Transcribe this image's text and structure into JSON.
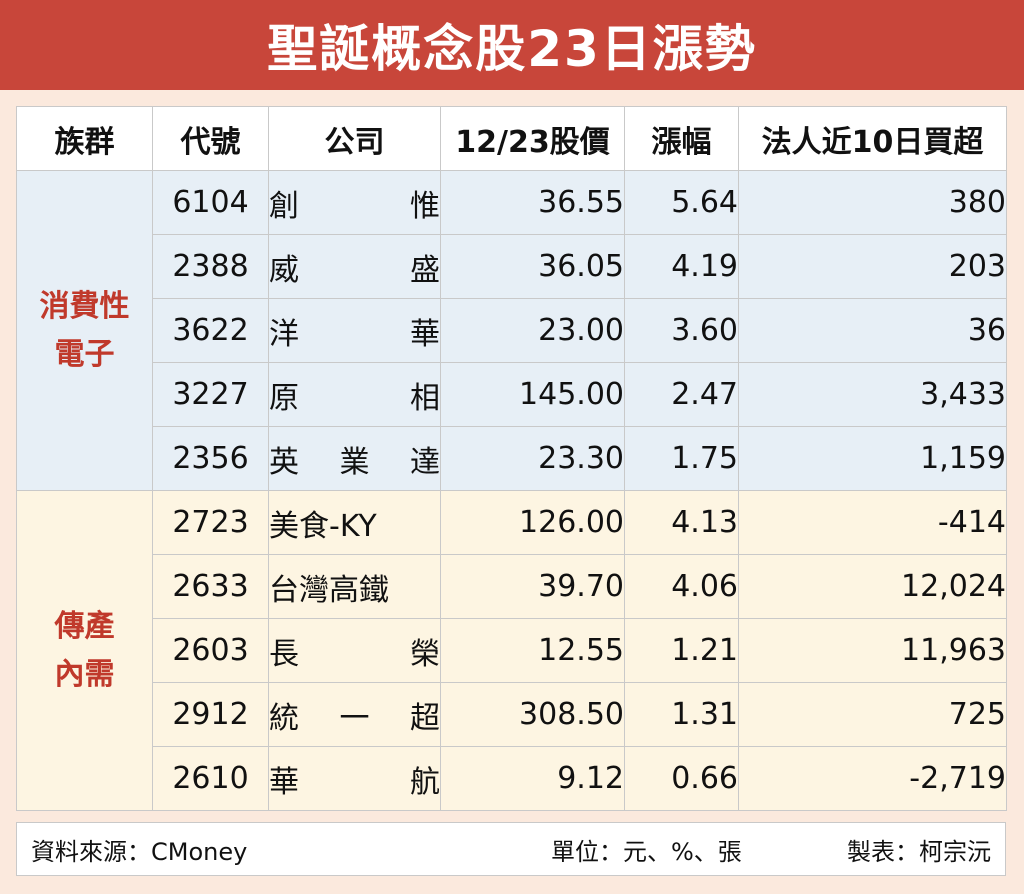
{
  "title": "聖誕概念股23日漲勢",
  "headers": {
    "group": "族群",
    "code": "代號",
    "company": "公司",
    "price": "12/23股價",
    "change": "漲幅",
    "net_buy": "法人近10日買超"
  },
  "groups": [
    {
      "line1": "消費性",
      "line2": "電子"
    },
    {
      "line1": "傳產",
      "line2": "內需"
    }
  ],
  "rows": [
    {
      "code": "6104",
      "name_chars": [
        "創",
        "惟"
      ],
      "price": "36.55",
      "change": "5.64",
      "net_buy": "380"
    },
    {
      "code": "2388",
      "name_chars": [
        "威",
        "盛"
      ],
      "price": "36.05",
      "change": "4.19",
      "net_buy": "203"
    },
    {
      "code": "3622",
      "name_chars": [
        "洋",
        "華"
      ],
      "price": "23.00",
      "change": "3.60",
      "net_buy": "36"
    },
    {
      "code": "3227",
      "name_chars": [
        "原",
        "相"
      ],
      "price": "145.00",
      "change": "2.47",
      "net_buy": "3,433"
    },
    {
      "code": "2356",
      "name_chars": [
        "英",
        "業",
        "達"
      ],
      "price": "23.30",
      "change": "1.75",
      "net_buy": "1,159"
    },
    {
      "code": "2723",
      "name_chars": [
        "美食-KY"
      ],
      "price": "126.00",
      "change": "4.13",
      "net_buy": "-414"
    },
    {
      "code": "2633",
      "name_chars": [
        "台灣高鐵"
      ],
      "price": "39.70",
      "change": "4.06",
      "net_buy": "12,024"
    },
    {
      "code": "2603",
      "name_chars": [
        "長",
        "榮"
      ],
      "price": "12.55",
      "change": "1.21",
      "net_buy": "11,963"
    },
    {
      "code": "2912",
      "name_chars": [
        "統",
        "一",
        "超"
      ],
      "price": "308.50",
      "change": "1.31",
      "net_buy": "725"
    },
    {
      "code": "2610",
      "name_chars": [
        "華",
        "航"
      ],
      "price": "9.12",
      "change": "0.66",
      "net_buy": "-2,719"
    }
  ],
  "footer": {
    "source": "資料來源：CMoney",
    "unit": "單位：元、%、張",
    "maker": "製表：柯宗沅"
  },
  "colors": {
    "title_bg": "#c8463a",
    "group_text": "#c0392b",
    "row_electronics": "#e7eff6",
    "row_traditional": "#fdf5e2",
    "page_bg": "#fbe9dd"
  }
}
